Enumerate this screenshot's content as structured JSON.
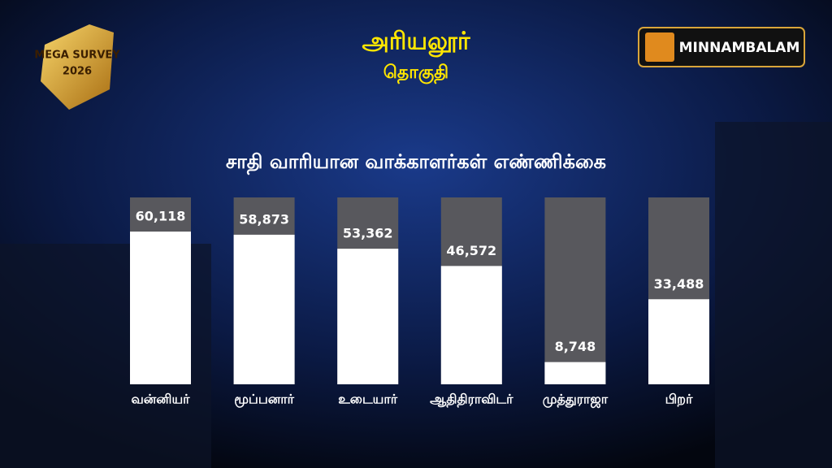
{
  "header": {
    "district": "அரியலூர்",
    "constituency": "தொகுதி",
    "badge_line1": "MEGA SURVEY",
    "badge_line2": "2026",
    "brand": "MINNAMBALAM"
  },
  "chart_data": {
    "type": "bar",
    "title": "சாதி வாரியான வாக்காளர்கள்  எண்ணிக்கை",
    "categories": [
      "வன்னியர்",
      "மூப்பனார்",
      "உடையார்",
      "ஆதிதிராவிடர்",
      "முத்துராஜா",
      "பிறர்"
    ],
    "values": [
      60118,
      58873,
      53362,
      46572,
      8748,
      33488
    ],
    "value_labels": [
      "60,118",
      "58,873",
      "53,362",
      "46,572",
      "8,748",
      "33,488"
    ],
    "color": "#ffffff"
  }
}
